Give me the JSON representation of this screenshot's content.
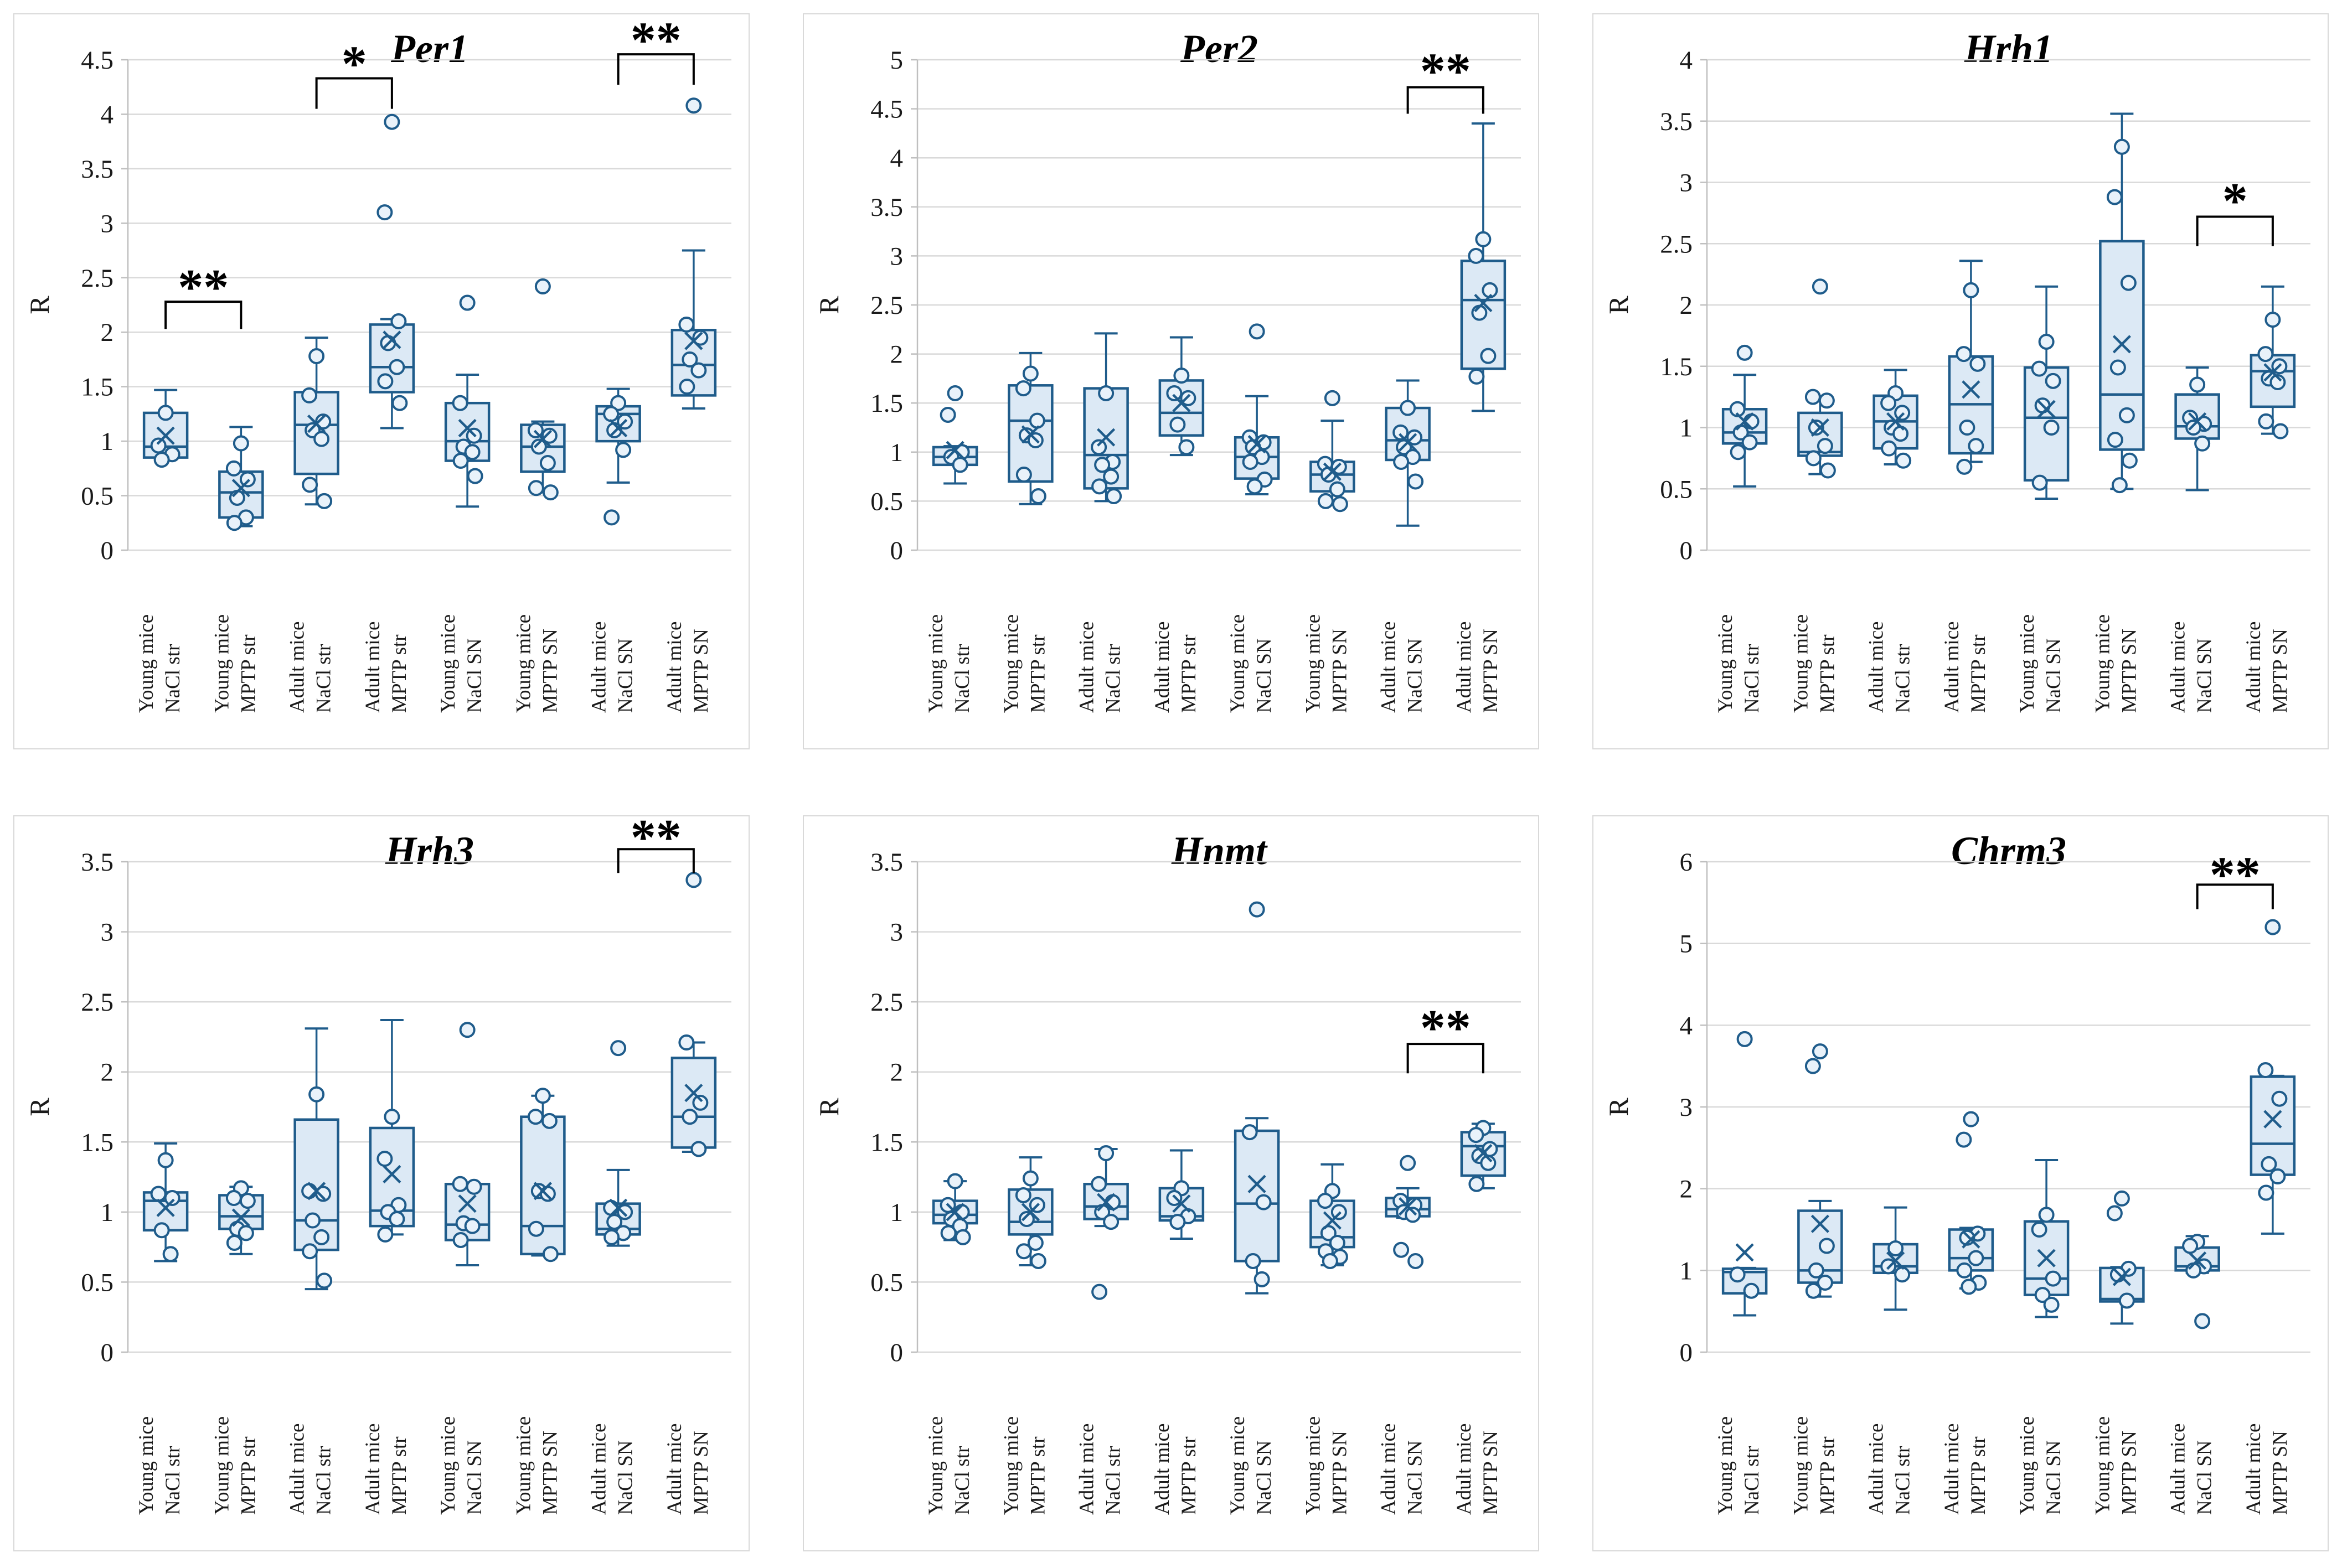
{
  "figure": {
    "background": "#ffffff",
    "ylabel": "R",
    "categories": [
      [
        "Young mice",
        "NaCl str"
      ],
      [
        "Young mice",
        "MPTP str"
      ],
      [
        "Adult mice",
        "NaCl str"
      ],
      [
        "Adult mice",
        "MPTP str"
      ],
      [
        "Young mice",
        "NaCl SN"
      ],
      [
        "Young mice",
        "MPTP SN"
      ],
      [
        "Adult mice",
        "NaCl SN"
      ],
      [
        "Adult mice",
        "MPTP SN"
      ]
    ]
  },
  "style_tokens": {
    "box_fill": "#dce9f5",
    "box_stroke": "#1f5c8b",
    "point_fill": "#e9f2fa",
    "grid_color": "#d9d9d9",
    "axis_line_color": "#bfbfbf",
    "text_color": "#1a1a1a",
    "sig_color": "#000000",
    "card_border": "#d9d9d9"
  },
  "chart_data": [
    {
      "type": "box",
      "title": "Per1",
      "ylabel": "R",
      "ylim": [
        0,
        4.5
      ],
      "ytick_step": 0.5,
      "grid": true,
      "groups": [
        {
          "lo": 0.83,
          "q1": 0.85,
          "med": 0.95,
          "q3": 1.26,
          "hi": 1.47,
          "mean": 1.05,
          "points": [
            1.26,
            0.96,
            0.88,
            0.83
          ]
        },
        {
          "lo": 0.22,
          "q1": 0.3,
          "med": 0.53,
          "q3": 0.72,
          "hi": 1.13,
          "mean": 0.57,
          "points": [
            0.98,
            0.75,
            0.65,
            0.48,
            0.3,
            0.25
          ]
        },
        {
          "lo": 0.42,
          "q1": 0.7,
          "med": 1.15,
          "q3": 1.45,
          "hi": 1.95,
          "mean": 1.16,
          "points": [
            1.78,
            1.42,
            1.18,
            1.1,
            1.02,
            0.6,
            0.45
          ]
        },
        {
          "lo": 1.12,
          "q1": 1.45,
          "med": 1.68,
          "q3": 2.07,
          "hi": 2.12,
          "mean": 1.93,
          "points": [
            3.93,
            3.1,
            2.1,
            1.9,
            1.68,
            1.55,
            1.35
          ]
        },
        {
          "lo": 0.4,
          "q1": 0.82,
          "med": 1.0,
          "q3": 1.35,
          "hi": 1.61,
          "mean": 1.12,
          "points": [
            2.27,
            1.35,
            1.05,
            0.95,
            0.9,
            0.82,
            0.68
          ]
        },
        {
          "lo": 0.53,
          "q1": 0.72,
          "med": 0.95,
          "q3": 1.15,
          "hi": 1.18,
          "mean": 1.02,
          "points": [
            2.42,
            1.1,
            1.05,
            0.95,
            0.8,
            0.57,
            0.53
          ]
        },
        {
          "lo": 0.62,
          "q1": 1.0,
          "med": 1.25,
          "q3": 1.32,
          "hi": 1.48,
          "mean": 1.12,
          "points": [
            1.35,
            1.25,
            1.18,
            1.1,
            0.92,
            0.3
          ]
        },
        {
          "lo": 1.3,
          "q1": 1.42,
          "med": 1.7,
          "q3": 2.02,
          "hi": 2.75,
          "mean": 1.92,
          "points": [
            4.08,
            2.07,
            1.95,
            1.75,
            1.65,
            1.5
          ]
        }
      ],
      "significance": [
        {
          "a": 0,
          "b": 1,
          "label": "**",
          "bar": 2.28,
          "leg": 2.03,
          "star": 2.47
        },
        {
          "a": 2,
          "b": 3,
          "label": "*",
          "bar": 4.33,
          "leg": 4.05,
          "star": 4.52
        },
        {
          "a": 6,
          "b": 7,
          "label": "**",
          "bar": 4.55,
          "leg": 4.27,
          "star": 4.74
        }
      ]
    },
    {
      "type": "box",
      "title": "Per2",
      "ylabel": "R",
      "ylim": [
        0,
        5
      ],
      "ytick_step": 0.5,
      "grid": true,
      "groups": [
        {
          "lo": 0.68,
          "q1": 0.87,
          "med": 0.95,
          "q3": 1.05,
          "hi": 1.06,
          "mean": 1.02,
          "points": [
            1.6,
            1.38,
            1.0,
            0.95,
            0.87
          ]
        },
        {
          "lo": 0.47,
          "q1": 0.7,
          "med": 1.32,
          "q3": 1.68,
          "hi": 2.01,
          "mean": 1.18,
          "points": [
            1.8,
            1.65,
            1.32,
            1.17,
            1.12,
            0.77,
            0.55
          ]
        },
        {
          "lo": 0.5,
          "q1": 0.63,
          "med": 0.97,
          "q3": 1.65,
          "hi": 2.21,
          "mean": 1.15,
          "points": [
            1.6,
            1.05,
            0.9,
            0.87,
            0.75,
            0.65,
            0.55
          ]
        },
        {
          "lo": 0.97,
          "q1": 1.17,
          "med": 1.4,
          "q3": 1.73,
          "hi": 2.17,
          "mean": 1.5,
          "points": [
            1.78,
            1.6,
            1.55,
            1.28,
            1.05
          ]
        },
        {
          "lo": 0.57,
          "q1": 0.73,
          "med": 0.95,
          "q3": 1.15,
          "hi": 1.57,
          "mean": 1.08,
          "points": [
            2.23,
            1.15,
            1.1,
            1.05,
            0.95,
            0.9,
            0.72,
            0.65
          ]
        },
        {
          "lo": 0.47,
          "q1": 0.6,
          "med": 0.77,
          "q3": 0.9,
          "hi": 1.32,
          "mean": 0.8,
          "points": [
            1.55,
            0.88,
            0.85,
            0.77,
            0.62,
            0.5,
            0.47
          ]
        },
        {
          "lo": 0.25,
          "q1": 0.92,
          "med": 1.12,
          "q3": 1.45,
          "hi": 1.73,
          "mean": 1.1,
          "points": [
            1.45,
            1.2,
            1.15,
            1.05,
            0.95,
            0.9,
            0.7
          ]
        },
        {
          "lo": 1.42,
          "q1": 1.85,
          "med": 2.55,
          "q3": 2.95,
          "hi": 4.35,
          "mean": 2.52,
          "points": [
            3.17,
            3.0,
            2.65,
            2.42,
            1.98,
            1.77
          ]
        }
      ],
      "significance": [
        {
          "a": 6,
          "b": 7,
          "label": "**",
          "bar": 4.72,
          "leg": 4.45,
          "star": 4.95
        }
      ]
    },
    {
      "type": "box",
      "title": "Hrh1",
      "ylabel": "R",
      "ylim": [
        0,
        4
      ],
      "ytick_step": 0.5,
      "grid": true,
      "groups": [
        {
          "lo": 0.52,
          "q1": 0.87,
          "med": 0.96,
          "q3": 1.15,
          "hi": 1.43,
          "mean": 1.05,
          "points": [
            1.61,
            1.15,
            1.05,
            0.96,
            0.88,
            0.8
          ]
        },
        {
          "lo": 0.62,
          "q1": 0.77,
          "med": 0.8,
          "q3": 1.12,
          "hi": 1.25,
          "mean": 1.0,
          "points": [
            2.15,
            1.25,
            1.22,
            1.0,
            0.85,
            0.75,
            0.65
          ]
        },
        {
          "lo": 0.7,
          "q1": 0.83,
          "med": 1.05,
          "q3": 1.26,
          "hi": 1.47,
          "mean": 1.05,
          "points": [
            1.28,
            1.2,
            1.12,
            1.0,
            0.95,
            0.83,
            0.73
          ]
        },
        {
          "lo": 0.72,
          "q1": 0.79,
          "med": 1.19,
          "q3": 1.58,
          "hi": 2.36,
          "mean": 1.31,
          "points": [
            2.12,
            1.6,
            1.52,
            1.0,
            0.85,
            0.68
          ]
        },
        {
          "lo": 0.42,
          "q1": 0.57,
          "med": 1.08,
          "q3": 1.49,
          "hi": 2.15,
          "mean": 1.15,
          "points": [
            1.7,
            1.48,
            1.38,
            1.18,
            1.0,
            0.55
          ]
        },
        {
          "lo": 0.5,
          "q1": 0.82,
          "med": 1.27,
          "q3": 2.52,
          "hi": 3.56,
          "mean": 1.68,
          "points": [
            3.29,
            2.88,
            2.18,
            1.49,
            1.1,
            0.9,
            0.73,
            0.53
          ]
        },
        {
          "lo": 0.49,
          "q1": 0.91,
          "med": 1.01,
          "q3": 1.27,
          "hi": 1.49,
          "mean": 1.05,
          "points": [
            1.35,
            1.08,
            1.03,
            1.0,
            0.87
          ]
        },
        {
          "lo": 0.95,
          "q1": 1.17,
          "med": 1.46,
          "q3": 1.59,
          "hi": 2.15,
          "mean": 1.45,
          "points": [
            1.88,
            1.6,
            1.5,
            1.4,
            1.37,
            1.05,
            0.97
          ]
        }
      ],
      "significance": [
        {
          "a": 6,
          "b": 7,
          "label": "*",
          "bar": 2.72,
          "leg": 2.48,
          "star": 2.9
        }
      ]
    },
    {
      "type": "box",
      "title": "Hrh3",
      "ylabel": "R",
      "ylim": [
        0,
        3.5
      ],
      "ytick_step": 0.5,
      "grid": true,
      "groups": [
        {
          "lo": 0.65,
          "q1": 0.87,
          "med": 1.08,
          "q3": 1.14,
          "hi": 1.49,
          "mean": 1.03,
          "points": [
            1.37,
            1.13,
            1.1,
            0.87,
            0.7
          ]
        },
        {
          "lo": 0.7,
          "q1": 0.88,
          "med": 0.97,
          "q3": 1.12,
          "hi": 1.18,
          "mean": 0.96,
          "points": [
            1.17,
            1.1,
            1.08,
            0.88,
            0.85,
            0.78
          ]
        },
        {
          "lo": 0.45,
          "q1": 0.73,
          "med": 0.94,
          "q3": 1.66,
          "hi": 2.31,
          "mean": 1.15,
          "points": [
            1.84,
            1.15,
            1.13,
            0.94,
            0.82,
            0.72,
            0.51
          ]
        },
        {
          "lo": 0.84,
          "q1": 0.9,
          "med": 1.01,
          "q3": 1.6,
          "hi": 2.37,
          "mean": 1.27,
          "points": [
            1.68,
            1.38,
            1.05,
            1.0,
            0.95,
            0.84
          ]
        },
        {
          "lo": 0.62,
          "q1": 0.8,
          "med": 0.91,
          "q3": 1.2,
          "hi": 1.21,
          "mean": 1.06,
          "points": [
            2.3,
            1.2,
            1.18,
            0.92,
            0.9,
            0.8
          ]
        },
        {
          "lo": 0.69,
          "q1": 0.7,
          "med": 0.9,
          "q3": 1.68,
          "hi": 1.83,
          "mean": 1.15,
          "points": [
            1.83,
            1.68,
            1.65,
            1.15,
            1.13,
            0.88,
            0.7
          ]
        },
        {
          "lo": 0.76,
          "q1": 0.84,
          "med": 0.88,
          "q3": 1.06,
          "hi": 1.3,
          "mean": 1.03,
          "points": [
            2.17,
            1.03,
            1.0,
            0.93,
            0.85,
            0.82
          ]
        },
        {
          "lo": 1.43,
          "q1": 1.46,
          "med": 1.68,
          "q3": 2.1,
          "hi": 2.21,
          "mean": 1.85,
          "points": [
            3.37,
            2.21,
            1.78,
            1.68,
            1.45
          ]
        }
      ],
      "significance": [
        {
          "a": 6,
          "b": 7,
          "label": "**",
          "bar": 3.59,
          "leg": 3.42,
          "star": 3.72
        }
      ]
    },
    {
      "type": "box",
      "title": "Hnmt",
      "ylabel": "R",
      "ylim": [
        0,
        3.5
      ],
      "ytick_step": 0.5,
      "grid": true,
      "groups": [
        {
          "lo": 0.8,
          "q1": 0.92,
          "med": 0.98,
          "q3": 1.08,
          "hi": 1.22,
          "mean": 1.0,
          "points": [
            1.22,
            1.05,
            1.0,
            0.95,
            0.9,
            0.85,
            0.82
          ]
        },
        {
          "lo": 0.62,
          "q1": 0.84,
          "med": 0.93,
          "q3": 1.16,
          "hi": 1.39,
          "mean": 1.0,
          "points": [
            1.24,
            1.12,
            1.05,
            0.95,
            0.78,
            0.72,
            0.65
          ]
        },
        {
          "lo": 0.9,
          "q1": 0.95,
          "med": 1.04,
          "q3": 1.2,
          "hi": 1.45,
          "mean": 1.07,
          "points": [
            1.42,
            1.2,
            1.07,
            1.0,
            0.93,
            0.43
          ]
        },
        {
          "lo": 0.81,
          "q1": 0.94,
          "med": 0.97,
          "q3": 1.17,
          "hi": 1.44,
          "mean": 1.06,
          "points": [
            1.17,
            1.1,
            0.97,
            0.93
          ]
        },
        {
          "lo": 0.42,
          "q1": 0.65,
          "med": 1.06,
          "q3": 1.58,
          "hi": 1.67,
          "mean": 1.2,
          "points": [
            3.16,
            1.57,
            1.07,
            0.65,
            0.52
          ]
        },
        {
          "lo": 0.62,
          "q1": 0.75,
          "med": 0.82,
          "q3": 1.08,
          "hi": 1.34,
          "mean": 0.94,
          "points": [
            1.15,
            1.08,
            1.0,
            0.85,
            0.78,
            0.72,
            0.68,
            0.65
          ]
        },
        {
          "lo": 0.96,
          "q1": 0.97,
          "med": 1.02,
          "q3": 1.1,
          "hi": 1.17,
          "mean": 1.04,
          "points": [
            1.35,
            1.08,
            1.05,
            1.0,
            0.98,
            0.73,
            0.65
          ]
        },
        {
          "lo": 1.17,
          "q1": 1.26,
          "med": 1.47,
          "q3": 1.57,
          "hi": 1.63,
          "mean": 1.42,
          "points": [
            1.6,
            1.55,
            1.45,
            1.4,
            1.35,
            1.2
          ]
        }
      ],
      "significance": [
        {
          "a": 6,
          "b": 7,
          "label": "**",
          "bar": 2.2,
          "leg": 1.99,
          "star": 2.36
        }
      ]
    },
    {
      "type": "box",
      "title": "Chrm3",
      "ylabel": "R",
      "ylim": [
        0,
        6
      ],
      "ytick_step": 1,
      "grid": true,
      "groups": [
        {
          "lo": 0.45,
          "q1": 0.72,
          "med": 0.98,
          "q3": 1.02,
          "hi": 1.03,
          "mean": 1.22,
          "points": [
            3.83,
            0.95,
            0.75
          ]
        },
        {
          "lo": 0.68,
          "q1": 0.85,
          "med": 1.0,
          "q3": 1.73,
          "hi": 1.85,
          "mean": 1.57,
          "points": [
            3.68,
            3.5,
            1.3,
            1.0,
            0.85,
            0.75
          ]
        },
        {
          "lo": 0.52,
          "q1": 0.97,
          "med": 1.05,
          "q3": 1.32,
          "hi": 1.77,
          "mean": 1.12,
          "points": [
            1.27,
            1.05,
            0.95
          ]
        },
        {
          "lo": 0.78,
          "q1": 1.0,
          "med": 1.15,
          "q3": 1.5,
          "hi": 1.52,
          "mean": 1.38,
          "points": [
            2.85,
            2.6,
            1.45,
            1.4,
            1.15,
            1.0,
            0.85,
            0.8
          ]
        },
        {
          "lo": 0.43,
          "q1": 0.7,
          "med": 0.9,
          "q3": 1.6,
          "hi": 2.35,
          "mean": 1.15,
          "points": [
            1.68,
            1.5,
            0.9,
            0.7,
            0.58
          ]
        },
        {
          "lo": 0.35,
          "q1": 0.62,
          "med": 0.65,
          "q3": 1.03,
          "hi": 1.04,
          "mean": 0.92,
          "points": [
            1.88,
            1.7,
            1.02,
            0.95,
            0.63
          ]
        },
        {
          "lo": 0.97,
          "q1": 1.0,
          "med": 1.05,
          "q3": 1.28,
          "hi": 1.42,
          "mean": 1.12,
          "points": [
            1.35,
            1.3,
            1.05,
            1.0,
            0.38
          ]
        },
        {
          "lo": 1.45,
          "q1": 2.17,
          "med": 2.55,
          "q3": 3.37,
          "hi": 3.38,
          "mean": 2.85,
          "points": [
            5.2,
            3.45,
            3.1,
            2.3,
            2.15,
            1.95
          ]
        }
      ],
      "significance": [
        {
          "a": 6,
          "b": 7,
          "label": "**",
          "bar": 5.72,
          "leg": 5.42,
          "star": 5.92
        }
      ]
    }
  ]
}
